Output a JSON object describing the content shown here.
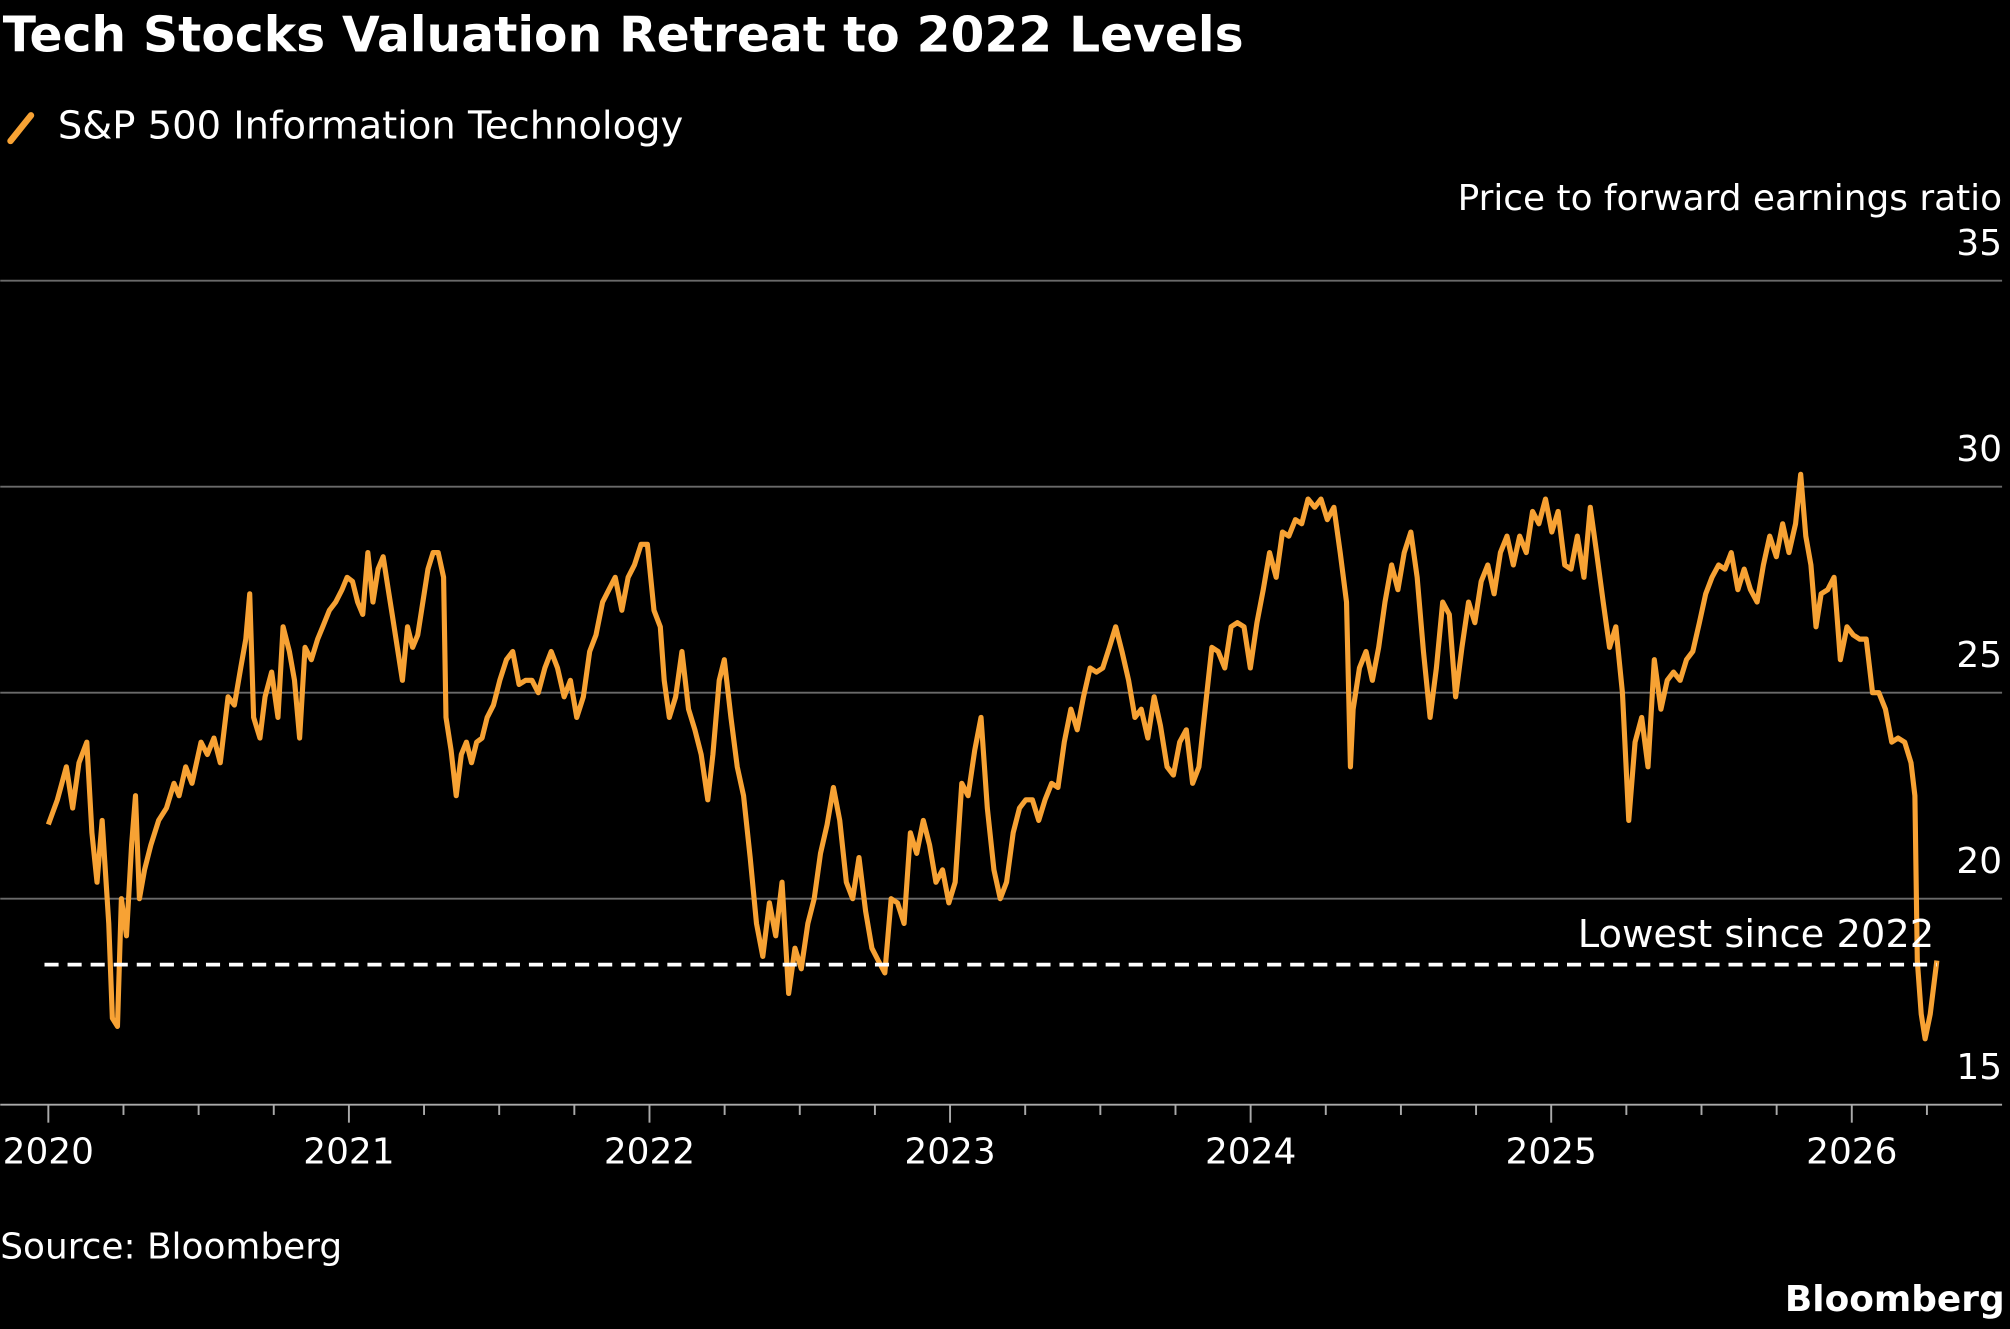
{
  "chart_data": {
    "type": "line",
    "title": "Tech Stocks Valuation Retreat to 2022 Levels",
    "y_label": "Price to forward earnings ratio",
    "source": "Source: Bloomberg",
    "branding": "Bloomberg",
    "y_axis_side": "right",
    "grid": true,
    "legend": "top-left",
    "xlim": [
      2019.84,
      2026.5
    ],
    "ylim": [
      15,
      35
    ],
    "xticks": [
      2020,
      2021,
      2022,
      2023,
      2024,
      2025,
      2026
    ],
    "xminorticks": [
      2020.25,
      2020.5,
      2020.75,
      2021.25,
      2021.5,
      2021.75,
      2022.25,
      2022.5,
      2022.75,
      2023.25,
      2023.5,
      2023.75,
      2024.25,
      2024.5,
      2024.75,
      2025.25,
      2025.5,
      2025.75,
      2026.25
    ],
    "yticks": [
      15,
      20,
      25,
      30,
      35
    ],
    "reference_line": {
      "value": 18.4,
      "label": "Lowest since 2022"
    },
    "x": [
      2020.0,
      2020.03,
      2020.06,
      2020.081,
      2020.102,
      2020.128,
      2020.145,
      2020.162,
      2020.179,
      2020.201,
      2020.213,
      2020.23,
      2020.243,
      2020.26,
      2020.277,
      2020.29,
      2020.303,
      2020.32,
      2020.341,
      2020.367,
      2020.393,
      2020.418,
      2020.435,
      2020.457,
      2020.478,
      2020.508,
      2020.529,
      2020.551,
      2020.572,
      2020.598,
      2020.619,
      2020.64,
      2020.657,
      2020.67,
      2020.683,
      2020.704,
      2020.721,
      2020.743,
      2020.764,
      2020.781,
      2020.802,
      2020.819,
      2020.836,
      2020.854,
      2020.875,
      2020.896,
      2020.913,
      2020.935,
      2020.956,
      2020.977,
      2020.994,
      2021.012,
      2021.029,
      2021.046,
      2021.063,
      2021.08,
      2021.097,
      2021.114,
      2021.131,
      2021.144,
      2021.161,
      2021.178,
      2021.195,
      2021.212,
      2021.229,
      2021.246,
      2021.263,
      2021.28,
      2021.297,
      2021.315,
      2021.323,
      2021.34,
      2021.357,
      2021.374,
      2021.391,
      2021.408,
      2021.425,
      2021.443,
      2021.46,
      2021.481,
      2021.502,
      2021.524,
      2021.545,
      2021.566,
      2021.588,
      2021.609,
      2021.63,
      2021.652,
      2021.673,
      2021.694,
      2021.716,
      2021.737,
      2021.758,
      2021.78,
      2021.801,
      2021.822,
      2021.844,
      2021.865,
      2021.886,
      2021.908,
      2021.929,
      2021.95,
      2021.972,
      2021.993,
      2022.015,
      2022.036,
      2022.049,
      2022.066,
      2022.087,
      2022.108,
      2022.13,
      2022.151,
      2022.172,
      2022.194,
      2022.211,
      2022.232,
      2022.249,
      2022.271,
      2022.292,
      2022.313,
      2022.335,
      2022.356,
      2022.377,
      2022.399,
      2022.42,
      2022.441,
      2022.463,
      2022.484,
      2022.505,
      2022.527,
      2022.548,
      2022.569,
      2022.591,
      2022.612,
      2022.633,
      2022.655,
      2022.676,
      2022.697,
      2022.719,
      2022.74,
      2022.761,
      2022.783,
      2022.804,
      2022.825,
      2022.847,
      2022.868,
      2022.889,
      2022.911,
      2022.932,
      2022.953,
      2022.975,
      2022.996,
      2023.017,
      2023.039,
      2023.06,
      2023.082,
      2023.103,
      2023.124,
      2023.146,
      2023.167,
      2023.188,
      2023.21,
      2023.231,
      2023.252,
      2023.274,
      2023.295,
      2023.316,
      2023.338,
      2023.359,
      2023.38,
      2023.402,
      2023.423,
      2023.444,
      2023.466,
      2023.487,
      2023.508,
      2023.53,
      2023.551,
      2023.572,
      2023.594,
      2023.615,
      2023.636,
      2023.658,
      2023.679,
      2023.7,
      2023.722,
      2023.743,
      2023.764,
      2023.786,
      2023.807,
      2023.828,
      2023.85,
      2023.871,
      2023.892,
      2023.914,
      2023.935,
      2023.956,
      2023.978,
      2023.999,
      2024.021,
      2024.042,
      2024.063,
      2024.085,
      2024.106,
      2024.127,
      2024.149,
      2024.17,
      2024.191,
      2024.213,
      2024.234,
      2024.255,
      2024.277,
      2024.298,
      2024.319,
      2024.332,
      2024.341,
      2024.362,
      2024.384,
      2024.405,
      2024.426,
      2024.447,
      2024.469,
      2024.49,
      2024.511,
      2024.533,
      2024.554,
      2024.575,
      2024.597,
      2024.618,
      2024.639,
      2024.661,
      2024.682,
      2024.703,
      2024.725,
      2024.746,
      2024.767,
      2024.789,
      2024.81,
      2024.831,
      2024.853,
      2024.874,
      2024.895,
      2024.917,
      2024.938,
      2024.959,
      2024.981,
      2025.002,
      2025.023,
      2025.045,
      2025.066,
      2025.087,
      2025.109,
      2025.13,
      2025.151,
      2025.173,
      2025.194,
      2025.215,
      2025.237,
      2025.258,
      2025.279,
      2025.301,
      2025.322,
      2025.343,
      2025.365,
      2025.386,
      2025.407,
      2025.429,
      2025.45,
      2025.471,
      2025.493,
      2025.514,
      2025.535,
      2025.557,
      2025.578,
      2025.599,
      2025.621,
      2025.642,
      2025.663,
      2025.685,
      2025.706,
      2025.727,
      2025.749,
      2025.77,
      2025.791,
      2025.813,
      2025.83,
      2025.847,
      2025.864,
      2025.881,
      2025.898,
      2025.92,
      2025.941,
      2025.962,
      2025.984,
      2026.005,
      2026.026,
      2026.048,
      2026.069,
      2026.09,
      2026.112,
      2026.133,
      2026.154,
      2026.176,
      2026.197,
      2026.21,
      2026.218,
      2026.231,
      2026.244,
      2026.261,
      2026.283
    ],
    "series": [
      {
        "name": "S&P 500 Information Technology",
        "color": "#f7a234",
        "values": [
          21.8,
          22.4,
          23.2,
          22.2,
          23.3,
          23.8,
          21.6,
          20.4,
          21.9,
          19.4,
          17.1,
          16.9,
          20.0,
          19.1,
          21.3,
          22.5,
          20.0,
          20.7,
          21.3,
          21.9,
          22.2,
          22.8,
          22.5,
          23.2,
          22.8,
          23.8,
          23.5,
          23.9,
          23.3,
          24.9,
          24.7,
          25.6,
          26.3,
          27.4,
          24.4,
          23.9,
          24.9,
          25.5,
          24.4,
          26.6,
          26.0,
          25.3,
          23.9,
          26.1,
          25.8,
          26.3,
          26.6,
          27.0,
          27.2,
          27.5,
          27.8,
          27.7,
          27.2,
          26.9,
          28.4,
          27.2,
          28.0,
          28.3,
          27.5,
          26.9,
          26.1,
          25.3,
          26.6,
          26.1,
          26.4,
          27.2,
          28.0,
          28.4,
          28.4,
          27.8,
          24.4,
          23.6,
          22.5,
          23.5,
          23.8,
          23.3,
          23.8,
          23.9,
          24.4,
          24.7,
          25.3,
          25.8,
          26.0,
          25.2,
          25.3,
          25.3,
          25.0,
          25.6,
          26.0,
          25.6,
          24.9,
          25.3,
          24.4,
          24.9,
          26.0,
          26.4,
          27.2,
          27.5,
          27.8,
          27.0,
          27.8,
          28.1,
          28.6,
          28.6,
          27.0,
          26.6,
          25.3,
          24.4,
          24.9,
          26.0,
          24.6,
          24.1,
          23.5,
          22.4,
          23.5,
          25.3,
          25.8,
          24.4,
          23.2,
          22.5,
          21.0,
          19.4,
          18.6,
          19.9,
          19.1,
          20.4,
          17.7,
          18.8,
          18.3,
          19.4,
          20.0,
          21.1,
          21.8,
          22.7,
          21.9,
          20.4,
          20.0,
          21.0,
          19.7,
          18.8,
          18.5,
          18.2,
          20.0,
          19.9,
          19.4,
          21.6,
          21.1,
          21.9,
          21.3,
          20.4,
          20.7,
          19.9,
          20.4,
          22.8,
          22.5,
          23.6,
          24.4,
          22.2,
          20.7,
          20.0,
          20.4,
          21.6,
          22.2,
          22.4,
          22.4,
          21.9,
          22.4,
          22.8,
          22.7,
          23.8,
          24.6,
          24.1,
          24.9,
          25.6,
          25.5,
          25.6,
          26.1,
          26.6,
          26.0,
          25.3,
          24.4,
          24.6,
          23.9,
          24.9,
          24.2,
          23.2,
          23.0,
          23.8,
          24.1,
          22.8,
          23.2,
          24.7,
          26.1,
          26.0,
          25.6,
          26.6,
          26.7,
          26.6,
          25.6,
          26.7,
          27.5,
          28.4,
          27.8,
          28.9,
          28.8,
          29.2,
          29.1,
          29.7,
          29.5,
          29.7,
          29.2,
          29.5,
          28.4,
          27.2,
          23.2,
          24.6,
          25.6,
          26.0,
          25.3,
          26.1,
          27.2,
          28.1,
          27.5,
          28.4,
          28.9,
          27.8,
          26.0,
          24.4,
          25.6,
          27.2,
          26.9,
          24.9,
          26.1,
          27.2,
          26.7,
          27.7,
          28.1,
          27.4,
          28.4,
          28.8,
          28.1,
          28.8,
          28.4,
          29.4,
          29.1,
          29.7,
          28.9,
          29.4,
          28.1,
          28.0,
          28.8,
          27.8,
          29.5,
          28.4,
          27.2,
          26.1,
          26.6,
          25.0,
          21.9,
          23.8,
          24.4,
          23.2,
          25.8,
          24.6,
          25.3,
          25.5,
          25.3,
          25.8,
          26.0,
          26.7,
          27.4,
          27.8,
          28.1,
          28.0,
          28.4,
          27.5,
          28.0,
          27.5,
          27.2,
          28.1,
          28.8,
          28.3,
          29.1,
          28.4,
          29.1,
          30.3,
          28.8,
          28.1,
          26.6,
          27.4,
          27.5,
          27.8,
          25.8,
          26.6,
          26.4,
          26.3,
          26.3,
          25.0,
          25.0,
          24.6,
          23.8,
          23.9,
          23.8,
          23.3,
          22.5,
          18.5,
          17.2,
          16.6,
          17.2,
          18.5
        ]
      }
    ]
  }
}
